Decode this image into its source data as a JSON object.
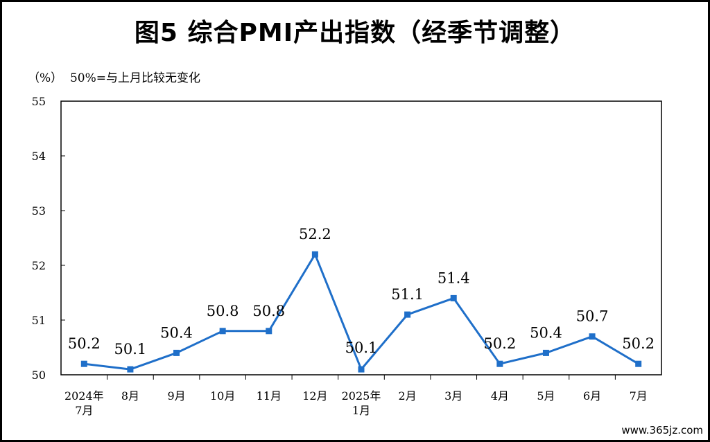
{
  "title": "图5  综合PMI产出指数（经季节调整）",
  "unit_note": "（%）  50%=与上月比较无变化",
  "watermark": "www.365jz.com",
  "chart_data": {
    "type": "line",
    "title": "图5  综合PMI产出指数（经季节调整）",
    "ylabel": "（%）",
    "note": "50%=与上月比较无变化",
    "ylim": [
      50,
      55
    ],
    "yticks": [
      50,
      51,
      52,
      53,
      54,
      55
    ],
    "grid": false,
    "categories": [
      [
        "2024年",
        "7月"
      ],
      [
        "8月"
      ],
      [
        "9月"
      ],
      [
        "10月"
      ],
      [
        "11月"
      ],
      [
        "12月"
      ],
      [
        "2025年",
        "1月"
      ],
      [
        "2月"
      ],
      [
        "3月"
      ],
      [
        "4月"
      ],
      [
        "5月"
      ],
      [
        "6月"
      ],
      [
        "7月"
      ]
    ],
    "values": [
      50.2,
      50.1,
      50.4,
      50.8,
      50.8,
      52.2,
      50.1,
      51.1,
      51.4,
      50.2,
      50.4,
      50.7,
      50.2
    ],
    "labels": [
      "50.2",
      "50.1",
      "50.4",
      "50.8",
      "50.8",
      "52.2",
      "50.1",
      "51.1",
      "51.4",
      "50.2",
      "50.4",
      "50.7",
      "50.2"
    ],
    "color": "#1f6fc9"
  }
}
